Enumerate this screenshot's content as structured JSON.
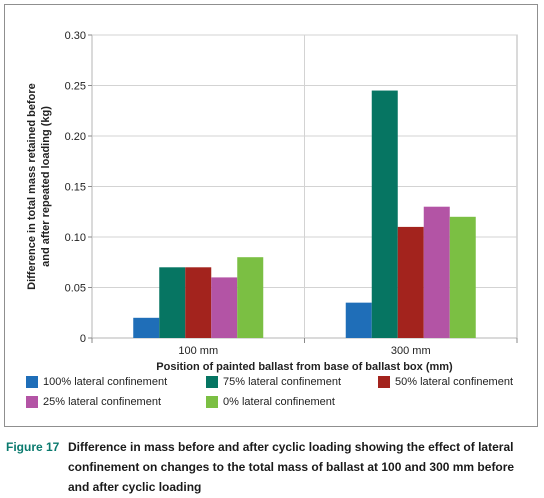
{
  "chart_data": {
    "type": "bar",
    "categories": [
      "100 mm",
      "300 mm"
    ],
    "series": [
      {
        "name": "100% lateral confinement",
        "color": "#1f6eb8",
        "values": [
          0.02,
          0.035
        ]
      },
      {
        "name": "75% lateral confinement",
        "color": "#067562",
        "values": [
          0.07,
          0.245
        ]
      },
      {
        "name": "50% lateral confinement",
        "color": "#a3231d",
        "values": [
          0.07,
          0.11
        ]
      },
      {
        "name": "25% lateral confinement",
        "color": "#b354a5",
        "values": [
          0.06,
          0.13
        ]
      },
      {
        "name": "0% lateral confinement",
        "color": "#7bbf43",
        "values": [
          0.08,
          0.12
        ]
      }
    ],
    "xlabel": "Position of painted ballast from base of ballast box (mm)",
    "ylabel_lines": [
      "Difference in total mass retained before",
      "and after repeated loading (kg)"
    ],
    "ylim": [
      0,
      0.3
    ],
    "yticks": [
      "0",
      "0.05",
      "0.10",
      "0.15",
      "0.20",
      "0.25",
      "0.30"
    ],
    "grid": true,
    "legend_position": "bottom"
  },
  "caption": {
    "lead": "Figure 17",
    "text": "Difference in mass before and after cyclic loading showing the effect of lateral confinement on changes to the total mass of ballast at 100 and 300 mm before and after cyclic loading"
  }
}
